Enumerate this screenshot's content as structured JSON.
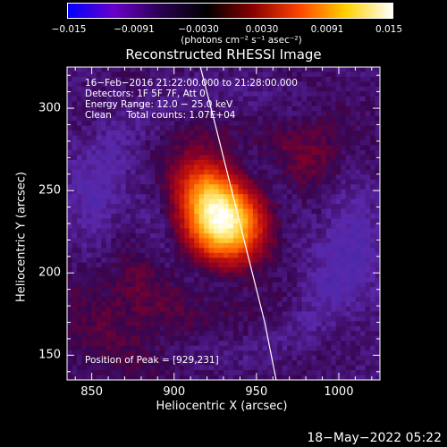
{
  "colorbar": {
    "ticks": [
      "−0.015",
      "−0.0091",
      "−0.0030",
      "0.0030",
      "0.0091",
      "0.015"
    ],
    "units": "(photons cm⁻² s⁻¹ asec⁻²)",
    "range": [
      -0.015,
      0.015
    ],
    "colors": [
      "#0000ff",
      "#6a00c8",
      "#2a0050",
      "#000000",
      "#8b0000",
      "#ff4500",
      "#ffd200",
      "#ffffff"
    ]
  },
  "info_lines": [
    "16−Feb−2016 21:22:00.000 to 21:28:00.000",
    "Detectors: 1F 5F 7F, Att 0",
    "Energy Range: 12.0 − 25.0 keV",
    "Clean     Total counts: 1.07E+04"
  ],
  "peak_label": "Position of Peak = [929,231]",
  "footer_date": "18−May−2022 05:22",
  "chart_data": {
    "type": "heatmap",
    "title": "Reconstructed RHESSI Image",
    "xlabel": "Heliocentric X (arcsec)",
    "ylabel": "Heliocentric Y (arcsec)",
    "xlim": [
      835,
      1025
    ],
    "ylim": [
      135,
      325
    ],
    "xticks": [
      850,
      900,
      950,
      1000
    ],
    "yticks": [
      150,
      200,
      250,
      300
    ],
    "peak": [
      929,
      231
    ],
    "limb_curve": {
      "x": [
        916,
        925,
        935,
        945,
        955,
        962
      ],
      "y": [
        325,
        290,
        250,
        210,
        170,
        135
      ]
    }
  }
}
